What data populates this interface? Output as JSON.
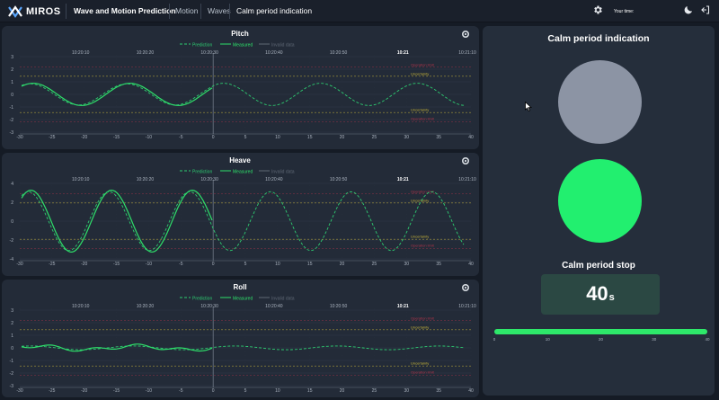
{
  "brand": {
    "name": "MIROS"
  },
  "app_title": "Wave and Motion Prediction",
  "nav": {
    "motion": "Motion",
    "waves": "Waves",
    "calm": "Calm period indication"
  },
  "topbar": {
    "your_time": "Your time:"
  },
  "icons": {
    "settings": "gear-icon",
    "theme": "moon-icon",
    "logout": "logout-icon"
  },
  "colors": {
    "prediction": "#2ecc71",
    "measured": "#2ee06a",
    "invalid": "#5f6875",
    "operation_limit": "#b0344a",
    "uncertainty": "#c7b43a",
    "calm_indicator_off": "#8c94a4",
    "calm_indicator_on": "#22ef6f",
    "progress": "#2ee86a"
  },
  "legend": {
    "prediction": "Prediction",
    "measured": "Measured",
    "invalid": "Invalid data"
  },
  "charts": [
    {
      "name": "pitch",
      "title": "Pitch",
      "y_ticks": [
        "3",
        "2",
        "1",
        "0",
        "-1",
        "-2",
        "-3"
      ],
      "time_ticks": [
        "10:20:10",
        "10:20:20",
        "10:20:30",
        "10:20:40",
        "10:20:50",
        "10:21",
        "10:21:10"
      ],
      "x_ticks": [
        "-30",
        "-25",
        "-20",
        "-15",
        "-10",
        "-5",
        "0",
        "5",
        "10",
        "15",
        "20",
        "25",
        "30",
        "35",
        "40"
      ],
      "labels": {
        "op_limit_upper": "Operation limit",
        "uncertainty_upper": "Uncertainty",
        "uncertainty_lower": "Uncertainty",
        "op_limit_lower": "Operation limit"
      }
    },
    {
      "name": "heave",
      "title": "Heave",
      "y_ticks": [
        "4",
        "2",
        "0",
        "-2",
        "-4"
      ],
      "time_ticks": [
        "10:20:10",
        "10:20:20",
        "10:20:30",
        "10:20:40",
        "10:20:50",
        "10:21",
        "10:21:10"
      ],
      "x_ticks": [
        "-30",
        "-25",
        "-20",
        "-15",
        "-10",
        "-5",
        "0",
        "5",
        "10",
        "15",
        "20",
        "25",
        "30",
        "35",
        "40"
      ],
      "labels": {
        "op_limit_upper": "Operation limit",
        "uncertainty_upper": "Uncertainty",
        "uncertainty_lower": "Uncertainty",
        "op_limit_lower": "Operation limit"
      }
    },
    {
      "name": "roll",
      "title": "Roll",
      "y_ticks": [
        "3",
        "2",
        "1",
        "0",
        "-1",
        "-2",
        "-3"
      ],
      "time_ticks": [
        "10:20:10",
        "10:20:20",
        "10:20:30",
        "10:20:40",
        "10:20:50",
        "10:21",
        "10:21:10"
      ],
      "x_ticks": [
        "-30",
        "-25",
        "-20",
        "-15",
        "-10",
        "-5",
        "0",
        "5",
        "10",
        "15",
        "20",
        "25",
        "30",
        "35",
        "40"
      ],
      "labels": {
        "op_limit_upper": "Operation limit",
        "uncertainty_upper": "Uncertainty",
        "uncertainty_lower": "Uncertainty",
        "op_limit_lower": "Operation limit"
      }
    }
  ],
  "calm": {
    "title": "Calm period indication",
    "stop_title": "Calm period stop",
    "stop_value": "40",
    "stop_unit": "s",
    "progress_fraction": 1.0,
    "progress_ticks": [
      "0",
      "10",
      "20",
      "30",
      "40"
    ]
  }
}
